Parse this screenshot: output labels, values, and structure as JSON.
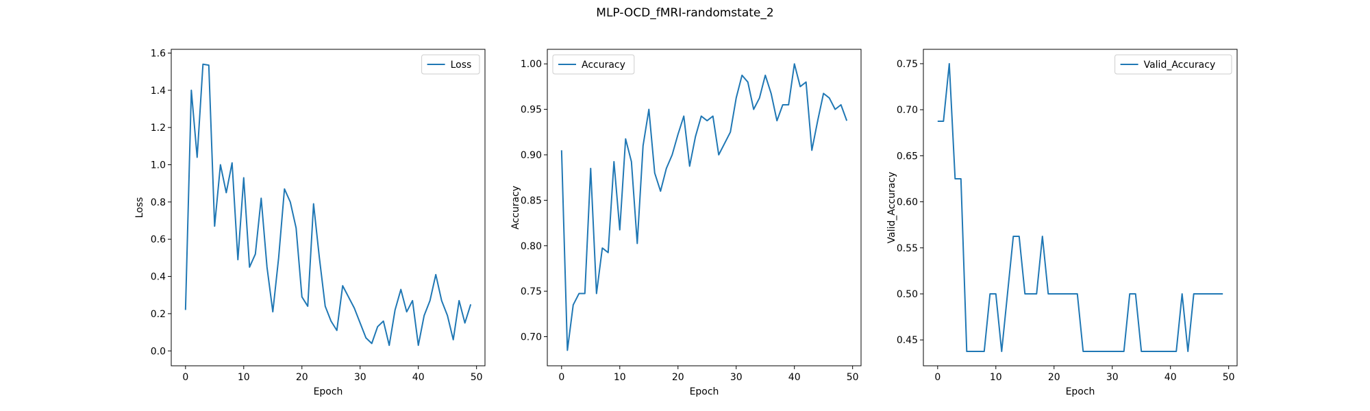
{
  "figure": {
    "title": "MLP-OCD_fMRI-randomstate_2"
  },
  "chart_data": [
    {
      "type": "line",
      "xlabel": "Epoch",
      "ylabel": "Loss",
      "xlim": [
        -2.45,
        51.45
      ],
      "ylim": [
        -0.08,
        1.62
      ],
      "xticks": [
        0,
        10,
        20,
        30,
        40,
        50
      ],
      "yticks": [
        0.0,
        0.2,
        0.4,
        0.6,
        0.8,
        1.0,
        1.2,
        1.4,
        1.6
      ],
      "ytick_format": 1,
      "legend": "top-right",
      "grid": false,
      "series": [
        {
          "name": "Loss",
          "color": "#1f77b4",
          "values": [
            0.22,
            1.4,
            1.04,
            1.54,
            1.535,
            0.67,
            1.0,
            0.85,
            1.01,
            0.49,
            0.93,
            0.45,
            0.52,
            0.82,
            0.45,
            0.21,
            0.5,
            0.87,
            0.8,
            0.66,
            0.29,
            0.24,
            0.79,
            0.5,
            0.24,
            0.16,
            0.11,
            0.35,
            0.29,
            0.23,
            0.15,
            0.07,
            0.04,
            0.13,
            0.16,
            0.03,
            0.22,
            0.33,
            0.21,
            0.27,
            0.03,
            0.19,
            0.27,
            0.41,
            0.27,
            0.19,
            0.06,
            0.27,
            0.15,
            0.25
          ]
        }
      ]
    },
    {
      "type": "line",
      "xlabel": "Epoch",
      "ylabel": "Accuracy",
      "xlim": [
        -2.45,
        51.45
      ],
      "ylim": [
        0.668,
        1.016
      ],
      "xticks": [
        0,
        10,
        20,
        30,
        40,
        50
      ],
      "yticks": [
        0.7,
        0.75,
        0.8,
        0.85,
        0.9,
        0.95,
        1.0
      ],
      "ytick_format": 2,
      "legend": "top-left",
      "grid": false,
      "series": [
        {
          "name": "Accuracy",
          "color": "#1f77b4",
          "values": [
            0.905,
            0.685,
            0.735,
            0.7475,
            0.7475,
            0.885,
            0.7475,
            0.7975,
            0.7925,
            0.8925,
            0.8175,
            0.9175,
            0.8925,
            0.8025,
            0.91,
            0.95,
            0.88,
            0.86,
            0.885,
            0.9,
            0.9225,
            0.9425,
            0.8875,
            0.92,
            0.9425,
            0.9375,
            0.9425,
            0.9,
            0.9125,
            0.925,
            0.9625,
            0.9875,
            0.98,
            0.95,
            0.9625,
            0.9875,
            0.9675,
            0.9375,
            0.955,
            0.955,
            1.0,
            0.975,
            0.98,
            0.905,
            0.9375,
            0.9675,
            0.9625,
            0.95,
            0.955,
            0.9375
          ]
        }
      ]
    },
    {
      "type": "line",
      "xlabel": "Epoch",
      "ylabel": "Valid_Accuracy",
      "xlim": [
        -2.45,
        51.45
      ],
      "ylim": [
        0.4219,
        0.7656
      ],
      "xticks": [
        0,
        10,
        20,
        30,
        40,
        50
      ],
      "yticks": [
        0.45,
        0.5,
        0.55,
        0.6,
        0.65,
        0.7,
        0.75
      ],
      "ytick_format": 2,
      "legend": "top-right",
      "grid": false,
      "series": [
        {
          "name": "Valid_Accuracy",
          "color": "#1f77b4",
          "values": [
            0.6875,
            0.6875,
            0.75,
            0.625,
            0.625,
            0.4375,
            0.4375,
            0.4375,
            0.4375,
            0.5,
            0.5,
            0.4375,
            0.5,
            0.5625,
            0.5625,
            0.5,
            0.5,
            0.5,
            0.5625,
            0.5,
            0.5,
            0.5,
            0.5,
            0.5,
            0.5,
            0.4375,
            0.4375,
            0.4375,
            0.4375,
            0.4375,
            0.4375,
            0.4375,
            0.4375,
            0.5,
            0.5,
            0.4375,
            0.4375,
            0.4375,
            0.4375,
            0.4375,
            0.4375,
            0.4375,
            0.5,
            0.4375,
            0.5,
            0.5,
            0.5,
            0.5,
            0.5,
            0.5
          ]
        }
      ]
    }
  ]
}
